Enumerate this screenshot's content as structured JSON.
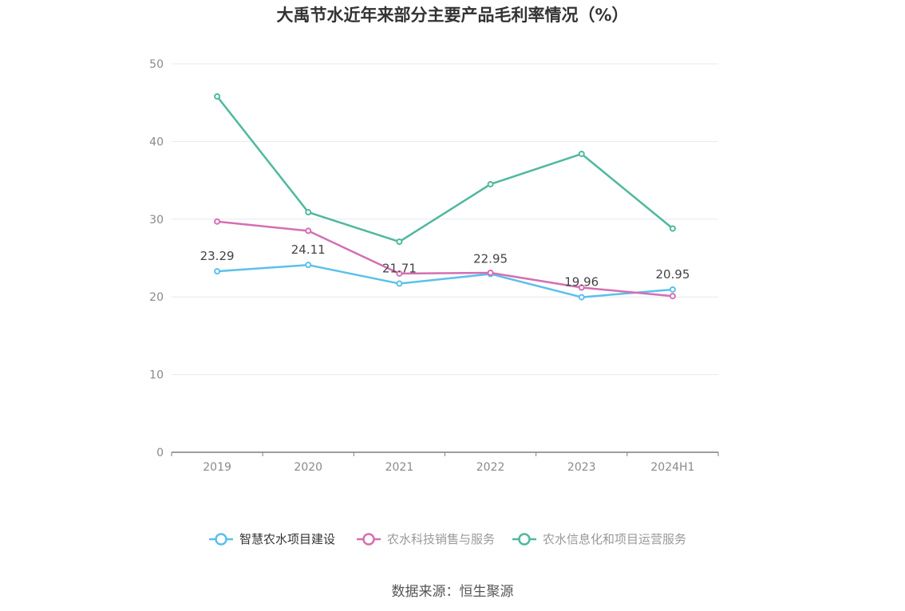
{
  "chart_data": {
    "type": "line",
    "title": "大禹节水近年来部分主要产品毛利率情况（%）",
    "categories": [
      "2019",
      "2020",
      "2021",
      "2022",
      "2023",
      "2024H1"
    ],
    "ylim": [
      0,
      50
    ],
    "yticks": [
      "0",
      "10",
      "20",
      "30",
      "40",
      "50"
    ],
    "grid": true,
    "legend_position": "bottom",
    "series": [
      {
        "name": "智慧农水项目建设",
        "color": "#5bc0eb",
        "values": [
          23.29,
          24.11,
          21.71,
          22.95,
          19.96,
          20.95
        ],
        "labels": [
          "23.29",
          "24.11",
          "21.71",
          "22.95",
          "19.96",
          "20.95"
        ]
      },
      {
        "name": "农水科技销售与服务",
        "color": "#d46fb3",
        "values": [
          29.7,
          28.5,
          23.0,
          23.1,
          21.2,
          20.1
        ]
      },
      {
        "name": "农水信息化和项目运营服务",
        "color": "#4fb89e",
        "values": [
          45.8,
          30.9,
          27.1,
          34.5,
          38.4,
          28.8
        ]
      }
    ]
  },
  "legend_text_colors": [
    "#333333",
    "#999999",
    "#999999"
  ],
  "source": "数据来源：恒生聚源"
}
